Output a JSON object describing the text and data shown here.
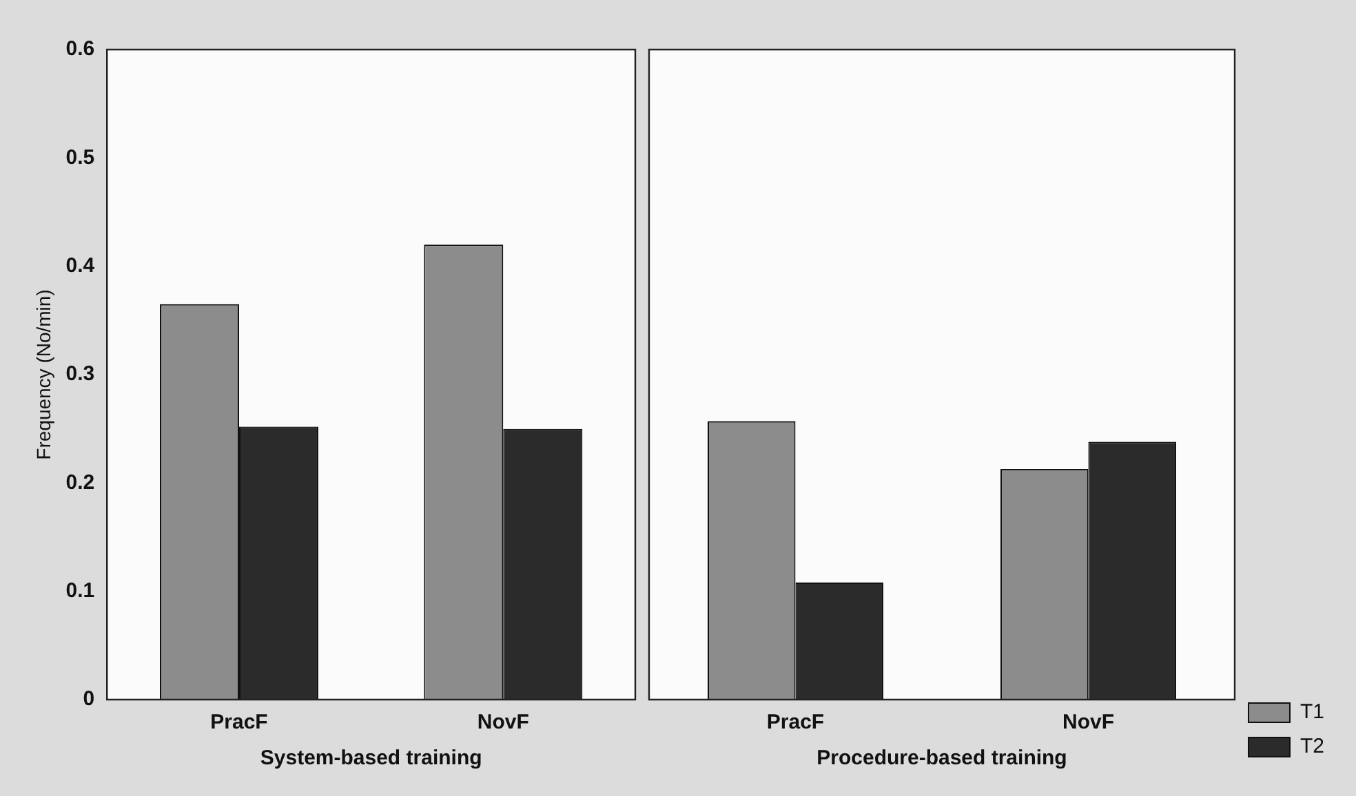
{
  "chart_data": [
    {
      "type": "bar",
      "categories": [
        "PracF",
        "NovF"
      ],
      "xlabel": "System-based training",
      "ylabel": "Frequency (No/min)",
      "ylim": [
        0,
        0.6
      ],
      "yticks": [
        0,
        0.1,
        0.2,
        0.3,
        0.4,
        0.5,
        0.6
      ],
      "legend": false,
      "series": [
        {
          "color": "#8c8c8c",
          "values": [
            0.365,
            0.42
          ]
        },
        {
          "color": "#2b2b2b",
          "values": [
            0.252,
            0.25
          ]
        }
      ]
    },
    {
      "type": "bar",
      "categories": [
        "PracF",
        "NovF"
      ],
      "xlabel": "Procedure-based training",
      "ylim": [
        0,
        0.6
      ],
      "yticks": [
        0,
        0.1,
        0.2,
        0.3,
        0.4,
        0.5,
        0.6
      ],
      "tick_labels": "x",
      "legend": "bottom right",
      "series": [
        {
          "name": "T1",
          "color": "#8c8c8c",
          "values": [
            0.257,
            0.213
          ]
        },
        {
          "name": "T2",
          "color": "#2b2b2b",
          "values": [
            0.108,
            0.238
          ]
        }
      ]
    }
  ]
}
